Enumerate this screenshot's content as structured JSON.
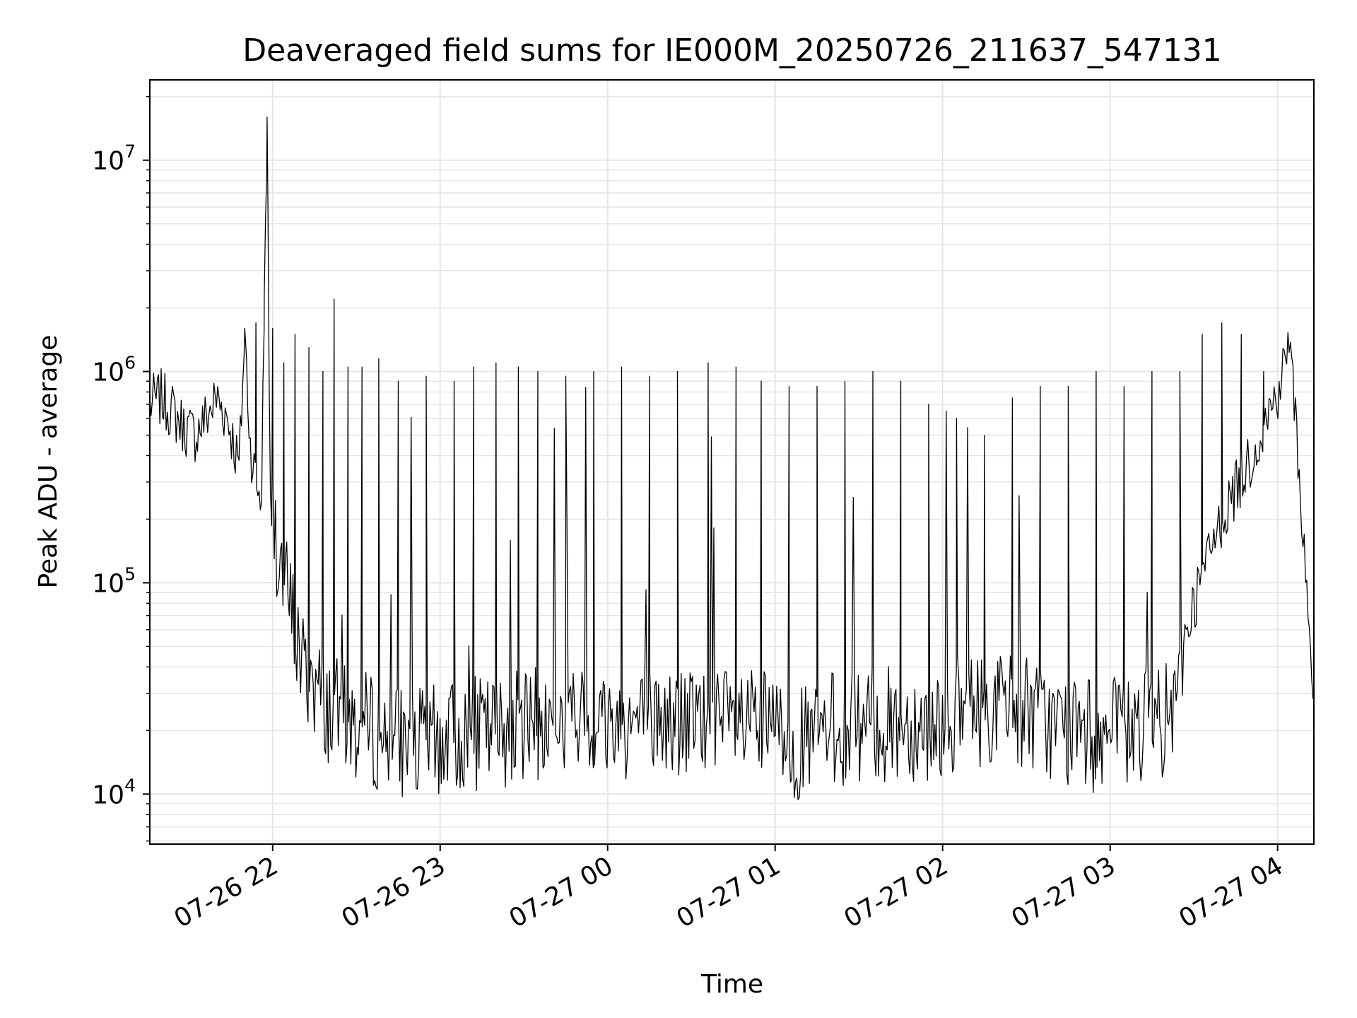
{
  "chart_data": {
    "type": "line",
    "title": "Deaveraged field sums for IE000M_20250726_211637_547131",
    "xlabel": "Time",
    "ylabel": "Peak ADU - average",
    "y_scale": "log",
    "ylim": [
      5800,
      24000000
    ],
    "xlim": [
      "2025-07-26 21:16",
      "2025-07-27 04:13"
    ],
    "grid": true,
    "line_color": "#000000",
    "x_ticks": [
      {
        "value": "2025-07-26 22:00",
        "label": "07-26 22"
      },
      {
        "value": "2025-07-26 23:00",
        "label": "07-26 23"
      },
      {
        "value": "2025-07-27 00:00",
        "label": "07-27 00"
      },
      {
        "value": "2025-07-27 01:00",
        "label": "07-27 01"
      },
      {
        "value": "2025-07-27 02:00",
        "label": "07-27 02"
      },
      {
        "value": "2025-07-27 03:00",
        "label": "07-27 03"
      },
      {
        "value": "2025-07-27 04:00",
        "label": "07-27 04"
      }
    ],
    "y_ticks": [
      {
        "value": 10000,
        "base": "10",
        "exp": "4"
      },
      {
        "value": 100000,
        "base": "10",
        "exp": "5"
      },
      {
        "value": 1000000,
        "base": "10",
        "exp": "6"
      },
      {
        "value": 10000000,
        "base": "10",
        "exp": "7"
      }
    ],
    "series": [
      {
        "points": [
          [
            "2025-07-26 21:16",
            700000
          ],
          [
            "2025-07-26 21:20",
            750000
          ],
          [
            "2025-07-26 21:24",
            650000
          ],
          [
            "2025-07-26 21:28",
            550000
          ],
          [
            "2025-07-26 21:32",
            500000
          ],
          [
            "2025-07-26 21:36",
            600000
          ],
          [
            "2025-07-26 21:40",
            750000
          ],
          [
            "2025-07-26 21:44",
            600000
          ],
          [
            "2025-07-26 21:48",
            350000
          ],
          [
            "2025-07-26 21:50",
            1500000
          ],
          [
            "2025-07-26 21:52",
            450000
          ],
          [
            "2025-07-26 21:54",
            300000
          ],
          [
            "2025-07-26 21:56",
            250000
          ],
          [
            "2025-07-26 21:58",
            16000000
          ],
          [
            "2025-07-26 21:59",
            300000
          ],
          [
            "2025-07-26 22:00",
            200000
          ],
          [
            "2025-07-26 22:02",
            150000
          ],
          [
            "2025-07-26 22:04",
            100000
          ],
          [
            "2025-07-26 22:06",
            80000
          ],
          [
            "2025-07-26 22:08",
            60000
          ],
          [
            "2025-07-26 22:10",
            45000
          ],
          [
            "2025-07-26 22:12",
            35000
          ],
          [
            "2025-07-26 22:14",
            38000
          ],
          [
            "2025-07-26 22:16",
            30000
          ],
          [
            "2025-07-26 22:20",
            26000
          ],
          [
            "2025-07-26 22:25",
            22000
          ],
          [
            "2025-07-26 22:30",
            21000
          ],
          [
            "2025-07-26 22:35",
            20000
          ],
          [
            "2025-07-26 22:40",
            19000
          ],
          [
            "2025-07-26 22:45",
            18000
          ],
          [
            "2025-07-26 22:50",
            17500
          ],
          [
            "2025-07-26 22:55",
            17000
          ],
          [
            "2025-07-26 23:00",
            18000
          ],
          [
            "2025-07-26 23:10",
            19000
          ],
          [
            "2025-07-26 23:20",
            20000
          ],
          [
            "2025-07-26 23:30",
            21000
          ],
          [
            "2025-07-26 23:40",
            21500
          ],
          [
            "2025-07-26 23:50",
            22000
          ],
          [
            "2025-07-27 00:00",
            22000
          ],
          [
            "2025-07-27 00:15",
            22000
          ],
          [
            "2025-07-27 00:30",
            21500
          ],
          [
            "2025-07-27 00:45",
            21000
          ],
          [
            "2025-07-27 01:00",
            20000
          ],
          [
            "2025-07-27 01:10",
            17000
          ],
          [
            "2025-07-27 01:20",
            20000
          ],
          [
            "2025-07-27 01:30",
            21000
          ],
          [
            "2025-07-27 01:45",
            21500
          ],
          [
            "2025-07-27 02:00",
            22000
          ],
          [
            "2025-07-27 02:10",
            25000
          ],
          [
            "2025-07-27 02:20",
            26000
          ],
          [
            "2025-07-27 02:30",
            25000
          ],
          [
            "2025-07-27 02:40",
            21000
          ],
          [
            "2025-07-27 02:50",
            19000
          ],
          [
            "2025-07-27 03:00",
            19000
          ],
          [
            "2025-07-27 03:10",
            20000
          ],
          [
            "2025-07-27 03:20",
            22000
          ],
          [
            "2025-07-27 03:24",
            25000
          ],
          [
            "2025-07-27 03:27",
            60000
          ],
          [
            "2025-07-27 03:30",
            80000
          ],
          [
            "2025-07-27 03:35",
            130000
          ],
          [
            "2025-07-27 03:40",
            200000
          ],
          [
            "2025-07-27 03:45",
            280000
          ],
          [
            "2025-07-27 03:50",
            380000
          ],
          [
            "2025-07-27 03:55",
            550000
          ],
          [
            "2025-07-27 04:00",
            800000
          ],
          [
            "2025-07-27 04:02",
            1000000
          ],
          [
            "2025-07-27 04:04",
            1500000
          ],
          [
            "2025-07-27 04:06",
            700000
          ],
          [
            "2025-07-27 04:08",
            300000
          ],
          [
            "2025-07-27 04:10",
            110000
          ],
          [
            "2025-07-27 04:12",
            45000
          ],
          [
            "2025-07-27 04:13",
            21000
          ]
        ],
        "spikes": [
          [
            "2025-07-26 21:50",
            1600000
          ],
          [
            "2025-07-26 21:54",
            1700000
          ],
          [
            "2025-07-26 21:57",
            2300000
          ],
          [
            "2025-07-26 21:58",
            16000000
          ],
          [
            "2025-07-26 22:00",
            1600000
          ],
          [
            "2025-07-26 22:04",
            1100000
          ],
          [
            "2025-07-26 22:08",
            1500000
          ],
          [
            "2025-07-26 22:13",
            1300000
          ],
          [
            "2025-07-26 22:18",
            1000000
          ],
          [
            "2025-07-26 22:22",
            2200000
          ],
          [
            "2025-07-26 22:27",
            1050000
          ],
          [
            "2025-07-26 22:32",
            1050000
          ],
          [
            "2025-07-26 22:38",
            1150000
          ],
          [
            "2025-07-26 22:45",
            900000
          ],
          [
            "2025-07-26 22:55",
            950000
          ],
          [
            "2025-07-26 23:05",
            900000
          ],
          [
            "2025-07-26 23:12",
            1050000
          ],
          [
            "2025-07-26 23:20",
            1100000
          ],
          [
            "2025-07-26 23:28",
            1050000
          ],
          [
            "2025-07-26 23:35",
            1000000
          ],
          [
            "2025-07-26 23:45",
            950000
          ],
          [
            "2025-07-26 23:55",
            1000000
          ],
          [
            "2025-07-27 00:05",
            1050000
          ],
          [
            "2025-07-27 00:15",
            950000
          ],
          [
            "2025-07-27 00:25",
            1000000
          ],
          [
            "2025-07-27 00:36",
            1100000
          ],
          [
            "2025-07-27 00:46",
            1050000
          ],
          [
            "2025-07-27 00:55",
            900000
          ],
          [
            "2025-07-27 01:05",
            850000
          ],
          [
            "2025-07-27 01:15",
            850000
          ],
          [
            "2025-07-27 01:25",
            900000
          ],
          [
            "2025-07-27 01:35",
            1000000
          ],
          [
            "2025-07-27 01:45",
            900000
          ],
          [
            "2025-07-27 01:55",
            700000
          ],
          [
            "2025-07-27 02:05",
            600000
          ],
          [
            "2025-07-27 02:15",
            500000
          ],
          [
            "2025-07-27 02:25",
            750000
          ],
          [
            "2025-07-27 02:35",
            850000
          ],
          [
            "2025-07-27 02:45",
            850000
          ],
          [
            "2025-07-27 02:55",
            1000000
          ],
          [
            "2025-07-27 03:05",
            850000
          ],
          [
            "2025-07-27 03:15",
            1000000
          ],
          [
            "2025-07-27 03:25",
            1000000
          ],
          [
            "2025-07-27 03:33",
            1500000
          ],
          [
            "2025-07-27 03:40",
            1700000
          ],
          [
            "2025-07-27 03:47",
            1500000
          ],
          [
            "2025-07-27 03:55",
            1000000
          ]
        ]
      }
    ]
  }
}
